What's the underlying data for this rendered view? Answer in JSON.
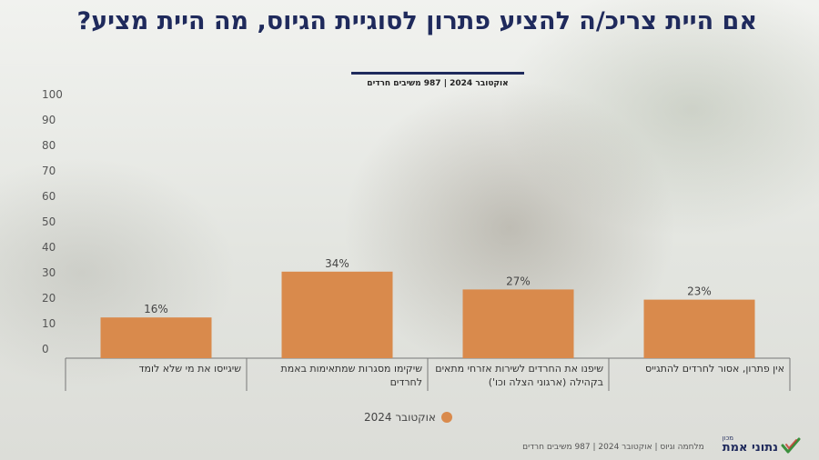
{
  "page": {
    "title": "אם היית צריכ/ה להציע פתרון לסוגיית הגיוס, מה היית מציע?",
    "subtitle": "אוקטובר 2024 | 987 משיבים חרדים",
    "footer_text": "מלחמה וגיוס | אוקטובר 2024 | 987 משיבים חרדים",
    "logo_small": "מכון",
    "logo_main": "נתוני אמת",
    "colors": {
      "title": "#1f2a5c",
      "bar": "#d98a4c",
      "logo_check": "#3a8f3c"
    }
  },
  "chart_data": {
    "type": "bar",
    "categories": [
      "אין פתרון, אסור לחרדים להתגייס",
      "שיפנו את החרדים לשירות אזרחי מתאים בקהילה (ארגוני הצלה וכו')",
      "שיקימו מסגרות שמתאימות באמת לחרדים",
      "שיגייסו את מי שלא לומד"
    ],
    "series": [
      {
        "name": "אוקטובר 2024",
        "values": [
          23,
          27,
          34,
          16
        ]
      }
    ],
    "data_labels": [
      "23%",
      "27%",
      "34%",
      "16%"
    ],
    "ylim": [
      0,
      100
    ],
    "yticks": [
      "0",
      "10",
      "20",
      "30",
      "40",
      "50",
      "60",
      "70",
      "80",
      "90",
      "100"
    ],
    "grid": false,
    "legend_position": "bottom-center",
    "color": "#d98a4c"
  }
}
